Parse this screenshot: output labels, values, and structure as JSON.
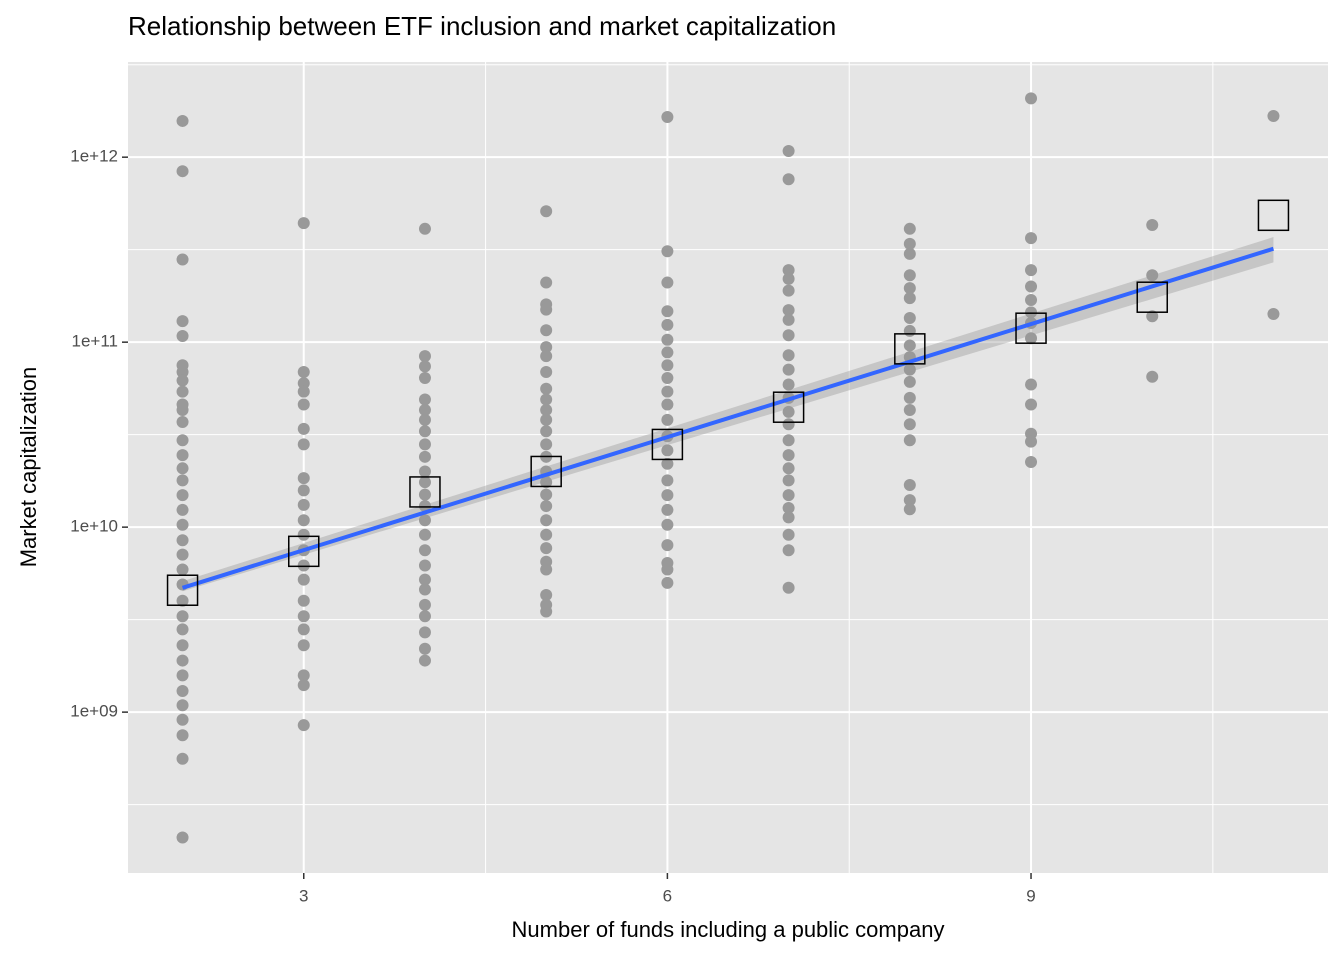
{
  "chart_data": {
    "type": "scatter",
    "title": "Relationship between ETF inclusion and market capitalization",
    "x_label": "Number of funds including a public company",
    "y_label": "Market capitalization",
    "xlim": [
      1.55,
      11.45
    ],
    "xticks": [
      3,
      6,
      9
    ],
    "ylim": [
      135000000,
      3270000000000
    ],
    "yticks": [
      {
        "value": 1000000000,
        "label": "1e+09"
      },
      {
        "value": 10000000000,
        "label": "1e+10"
      },
      {
        "value": 100000000000,
        "label": "1e+11"
      },
      {
        "value": 1000000000000,
        "label": "1e+12"
      }
    ],
    "y_log": true,
    "grid": true,
    "points": {
      "color": "#999999",
      "groups": [
        {
          "x": 2,
          "values": [
            1570000000000.0,
            840000000000.0,
            280000000000.0,
            130000000000.0,
            108000000000.0,
            75000000000.0,
            69000000000.0,
            62000000000.0,
            54000000000.0,
            46000000000.0,
            43000000000.0,
            37000000000.0,
            29500000000.0,
            24500000000.0,
            20800000000.0,
            17900000000.0,
            14900000000.0,
            12400000000.0,
            10300000000.0,
            8500000000.0,
            7100000000.0,
            5900000000.0,
            4900000000.0,
            4000000000.0,
            3300000000.0,
            2800000000.0,
            2300000000.0,
            1900000000.0,
            1580000000.0,
            1300000000.0,
            1090000000.0,
            910000000.0,
            750000000.0,
            560000000.0,
            210000000.0
          ]
        },
        {
          "x": 3,
          "values": [
            440000000000.0,
            69000000000.0,
            60000000000.0,
            54000000000.0,
            46000000000.0,
            34000000000.0,
            28000000000.0,
            18400000000.0,
            15800000000.0,
            13200000000.0,
            10900000000.0,
            9100000000.0,
            7500000000.0,
            6200000000.0,
            5200000000.0,
            4000000000.0,
            3300000000.0,
            2800000000.0,
            2300000000.0,
            1580000000.0,
            1400000000.0,
            850000000.0
          ]
        },
        {
          "x": 4,
          "values": [
            410000000000.0,
            84000000000.0,
            74000000000.0,
            64000000000.0,
            49000000000.0,
            43000000000.0,
            38000000000.0,
            33000000000.0,
            28000000000.0,
            24000000000.0,
            20000000000.0,
            17500000000.0,
            15000000000.0,
            13000000000.0,
            10900000000.0,
            9100000000.0,
            7500000000.0,
            6200000000.0,
            5200000000.0,
            4600000000.0,
            3800000000.0,
            3300000000.0,
            2700000000.0,
            2200000000.0,
            1900000000.0
          ]
        },
        {
          "x": 5,
          "values": [
            510000000000.0,
            210000000000.0,
            160000000000.0,
            150000000000.0,
            116000000000.0,
            94000000000.0,
            84000000000.0,
            69000000000.0,
            56000000000.0,
            49000000000.0,
            43000000000.0,
            38000000000.0,
            33000000000.0,
            28000000000.0,
            24000000000.0,
            20000000000.0,
            17500000000.0,
            15000000000.0,
            13000000000.0,
            10900000000.0,
            9100000000.0,
            7700000000.0,
            6500000000.0,
            5900000000.0,
            4300000000.0,
            3800000000.0,
            3500000000.0
          ]
        },
        {
          "x": 6,
          "values": [
            1650000000000.0,
            310000000000.0,
            210000000000.0,
            147000000000.0,
            124000000000.0,
            103000000000.0,
            88000000000.0,
            75000000000.0,
            64000000000.0,
            54000000000.0,
            46000000000.0,
            38000000000.0,
            31000000000.0,
            26000000000.0,
            22000000000.0,
            17900000000.0,
            14900000000.0,
            12400000000.0,
            10300000000.0,
            8000000000.0,
            6400000000.0,
            5900000000.0,
            5000000000.0
          ]
        },
        {
          "x": 7,
          "values": [
            1080000000000.0,
            760000000000.0,
            245000000000.0,
            220000000000.0,
            190000000000.0,
            149000000000.0,
            132000000000.0,
            109000000000.0,
            85000000000.0,
            71000000000.0,
            59000000000.0,
            50000000000.0,
            42000000000.0,
            36000000000.0,
            29500000000.0,
            24500000000.0,
            20800000000.0,
            17900000000.0,
            14900000000.0,
            12700000000.0,
            11300000000.0,
            9100000000.0,
            7500000000.0,
            4700000000.0
          ]
        },
        {
          "x": 8,
          "values": [
            410000000000.0,
            340000000000.0,
            300000000000.0,
            230000000000.0,
            196000000000.0,
            173000000000.0,
            135000000000.0,
            115000000000.0,
            96000000000.0,
            83000000000.0,
            71000000000.0,
            61000000000.0,
            50000000000.0,
            43000000000.0,
            36000000000.0,
            29500000000.0,
            16900000000.0,
            14000000000.0,
            12500000000.0
          ]
        },
        {
          "x": 9,
          "values": [
            2080000000000.0,
            365000000000.0,
            245000000000.0,
            200000000000.0,
            169000000000.0,
            145000000000.0,
            127000000000.0,
            105000000000.0,
            59000000000.0,
            46000000000.0,
            32000000000.0,
            29000000000.0,
            22500000000.0
          ]
        },
        {
          "x": 10,
          "values": [
            430000000000.0,
            230000000000.0,
            138000000000.0,
            65000000000.0
          ]
        },
        {
          "x": 11,
          "values": [
            1670000000000.0,
            142000000000.0
          ]
        }
      ]
    },
    "means": {
      "color": "#000000",
      "x": [
        2,
        3,
        4,
        5,
        6,
        7,
        8,
        9,
        10,
        11
      ],
      "values": [
        4560000000.0,
        7400000000.0,
        15500000000.0,
        20000000000.0,
        28000000000.0,
        44500000000.0,
        92000000000.0,
        119000000000.0,
        175000000000.0,
        485000000000.0
      ]
    },
    "fit": {
      "color": "#3366ff",
      "band_color": "#999999",
      "x": [
        2,
        11
      ],
      "values": [
        4700000000.0,
        320000000000.0
      ],
      "lower": [
        4500000000.0,
        270000000000.0
      ],
      "upper": [
        5100000000.0,
        370000000000.0
      ]
    }
  }
}
